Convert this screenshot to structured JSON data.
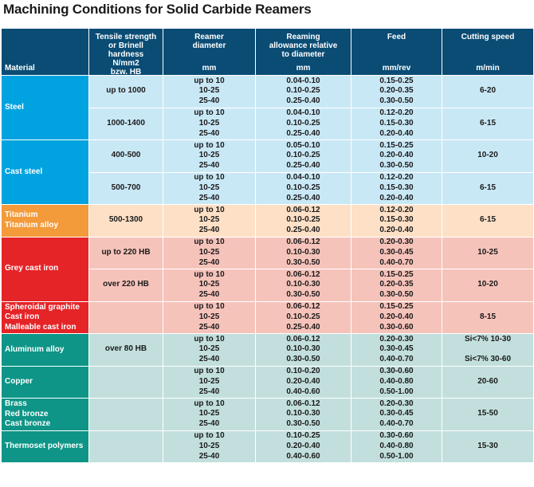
{
  "title": "Machining Conditions for Solid Carbide Reamers",
  "header": {
    "material": "Material",
    "tensile": [
      "Tensile strength",
      "or Brinell",
      "hardness",
      "N/mm2",
      "bzw. HB"
    ],
    "diameter": [
      "Reamer",
      "diameter"
    ],
    "diameter_unit": "mm",
    "allowance": [
      "Reaming",
      "allowance relative",
      "to diameter"
    ],
    "allowance_unit": "mm",
    "feed": [
      "Feed"
    ],
    "feed_unit": "mm/rev",
    "speed": [
      "Cutting speed"
    ],
    "speed_unit": "m/min"
  },
  "colors": {
    "header": "#0a4c74",
    "steel": "#00a3e0",
    "titanium": "#f39a3a",
    "cast_iron": "#e52428",
    "non_ferrous": "#0e9587"
  },
  "rows": [
    {
      "material": [
        "Steel"
      ],
      "strength": "up to 1000",
      "dia": [
        "up to 10",
        "10-25",
        "25-40"
      ],
      "allow": [
        "0.04-0.10",
        "0.10-0.25",
        "0.25-0.40"
      ],
      "feed": [
        "0.15-0.25",
        "0.20-0.35",
        "0.30-0.50"
      ],
      "speed": [
        "6-20"
      ]
    },
    {
      "material": [],
      "strength": "1000-1400",
      "dia": [
        "up to 10",
        "10-25",
        "25-40"
      ],
      "allow": [
        "0.04-0.10",
        "0.10-0.25",
        "0.25-0.40"
      ],
      "feed": [
        "0.12-0.20",
        "0.15-0.30",
        "0.20-0.40"
      ],
      "speed": [
        "6-15"
      ]
    },
    {
      "material": [
        "Cast steel"
      ],
      "strength": "400-500",
      "dia": [
        "up to 10",
        "10-25",
        "25-40"
      ],
      "allow": [
        "0.05-0.10",
        "0.10-0.25",
        "0.25-0.40"
      ],
      "feed": [
        "0.15-0.25",
        "0.20-0.40",
        "0.30-0.50"
      ],
      "speed": [
        "10-20"
      ]
    },
    {
      "material": [],
      "strength": "500-700",
      "dia": [
        "up to 10",
        "10-25",
        "25-40"
      ],
      "allow": [
        "0.04-0.10",
        "0.10-0.25",
        "0.25-0.40"
      ],
      "feed": [
        "0.12-0.20",
        "0.15-0.30",
        "0.20-0.40"
      ],
      "speed": [
        "6-15"
      ]
    },
    {
      "material": [
        "Titanium",
        "Titanium alloy"
      ],
      "strength": "500-1300",
      "dia": [
        "up to 10",
        "10-25",
        "25-40"
      ],
      "allow": [
        "0.06-0.12",
        "0.10-0.25",
        "0.25-0.40"
      ],
      "feed": [
        "0.12-0.20",
        "0.15-0.30",
        "0.20-0.40"
      ],
      "speed": [
        "6-15"
      ]
    },
    {
      "material": [
        "Grey cast iron"
      ],
      "strength": "up to 220 HB",
      "dia": [
        "up to 10",
        "10-25",
        "25-40"
      ],
      "allow": [
        "0.06-0.12",
        "0.10-0.30",
        "0.30-0.50"
      ],
      "feed": [
        "0.20-0.30",
        "0.30-0.45",
        "0.40-0.70"
      ],
      "speed": [
        "10-25"
      ]
    },
    {
      "material": [],
      "strength": "over  220 HB",
      "dia": [
        "up to 10",
        "10-25",
        "25-40"
      ],
      "allow": [
        "0.06-0.12",
        "0.10-0.30",
        "0.30-0.50"
      ],
      "feed": [
        "0.15-0.25",
        "0.20-0.35",
        "0.30-0.50"
      ],
      "speed": [
        "10-20"
      ]
    },
    {
      "material": [
        "Spheroidal graphite",
        "Cast iron",
        "Malleable cast iron"
      ],
      "strength": "",
      "dia": [
        "up to 10",
        "10-25",
        "25-40"
      ],
      "allow": [
        "0.06-0.12",
        "0.10-0.25",
        "0.25-0.40"
      ],
      "feed": [
        "0.15-0.25",
        "0.20-0.40",
        "0.30-0.60"
      ],
      "speed": [
        "8-15"
      ]
    },
    {
      "material": [
        "Aluminum alloy"
      ],
      "strength": "over 80 HB",
      "dia": [
        "up to 10",
        "10-25",
        "25-40"
      ],
      "allow": [
        "0.06-0.12",
        "0.10-0.30",
        "0.30-0.50"
      ],
      "feed": [
        "0.20-0.30",
        "0.30-0.45",
        "0.40-0.70"
      ],
      "speed": [
        "Si<7% 10-30",
        "",
        "Si<7% 30-60"
      ]
    },
    {
      "material": [
        "Copper"
      ],
      "strength": "",
      "dia": [
        "up to 10",
        "10-25",
        "25-40"
      ],
      "allow": [
        "0.10-0.20",
        "0.20-0.40",
        "0.40-0.60"
      ],
      "feed": [
        "0.30-0.60",
        "0.40-0.80",
        "0.50-1.00"
      ],
      "speed": [
        "20-60"
      ]
    },
    {
      "material": [
        "Brass",
        "Red bronze",
        "Cast bronze"
      ],
      "strength": "",
      "dia": [
        "up to 10",
        "10-25",
        "25-40"
      ],
      "allow": [
        "0.06-0.12",
        "0.10-0.30",
        "0.30-0.50"
      ],
      "feed": [
        "0.20-0.30",
        "0.30-0.45",
        "0.40-0.70"
      ],
      "speed": [
        "15-50"
      ]
    },
    {
      "material": [
        "Thermoset polymers"
      ],
      "strength": "",
      "dia": [
        "up to 10",
        "10-25",
        "25-40"
      ],
      "allow": [
        "0.10-0.25",
        "0.20-0.40",
        "0.40-0.60"
      ],
      "feed": [
        "0.30-0.60",
        "0.40-0.80",
        "0.50-1.00"
      ],
      "speed": [
        "15-30"
      ]
    }
  ]
}
